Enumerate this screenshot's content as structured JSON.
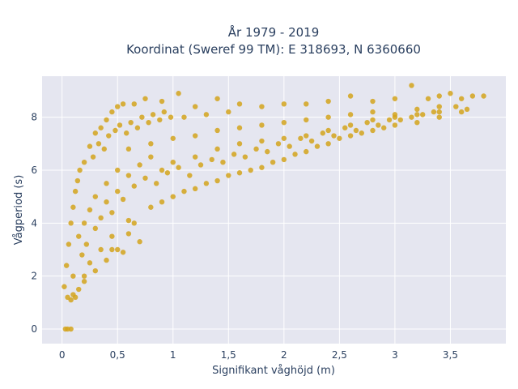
{
  "chart_data": {
    "type": "scatter",
    "title_line1": "År 1979 - 2019",
    "title_line2": "Koordinat (Sweref 99 TM): E 318693, N 6360660",
    "xlabel": "Signifikant våghöjd (m)",
    "ylabel": "Vågperiod (s)",
    "xlim": [
      -0.18,
      4.0
    ],
    "ylim": [
      -0.55,
      9.55
    ],
    "xticks": [
      0,
      0.5,
      1,
      1.5,
      2,
      2.5,
      3,
      3.5
    ],
    "xtick_labels": [
      "0",
      "0,5",
      "1",
      "1,5",
      "2",
      "2,5",
      "3",
      "3,5"
    ],
    "yticks": [
      0,
      2,
      4,
      6,
      8
    ],
    "ytick_labels": [
      "0",
      "2",
      "4",
      "6",
      "8"
    ],
    "grid": true,
    "marker_color": "#d4a31c",
    "background_color": "#e5e6f0",
    "points": [
      [
        0.03,
        0.0
      ],
      [
        0.05,
        0.0
      ],
      [
        0.08,
        0.0
      ],
      [
        0.02,
        1.6
      ],
      [
        0.05,
        1.2
      ],
      [
        0.08,
        1.1
      ],
      [
        0.1,
        1.3
      ],
      [
        0.04,
        2.4
      ],
      [
        0.06,
        3.2
      ],
      [
        0.08,
        4.0
      ],
      [
        0.1,
        4.6
      ],
      [
        0.12,
        5.2
      ],
      [
        0.14,
        5.6
      ],
      [
        0.16,
        6.0
      ],
      [
        0.2,
        6.3
      ],
      [
        0.25,
        6.9
      ],
      [
        0.3,
        7.4
      ],
      [
        0.35,
        7.6
      ],
      [
        0.4,
        7.9
      ],
      [
        0.45,
        8.2
      ],
      [
        0.5,
        8.4
      ],
      [
        0.55,
        8.5
      ],
      [
        0.65,
        8.5
      ],
      [
        0.75,
        8.7
      ],
      [
        0.9,
        8.6
      ],
      [
        1.05,
        8.9
      ],
      [
        1.2,
        8.4
      ],
      [
        1.4,
        8.7
      ],
      [
        1.6,
        8.5
      ],
      [
        1.8,
        8.4
      ],
      [
        2.0,
        8.5
      ],
      [
        2.2,
        8.5
      ],
      [
        2.4,
        8.6
      ],
      [
        2.6,
        8.8
      ],
      [
        2.8,
        8.6
      ],
      [
        3.0,
        8.7
      ],
      [
        3.15,
        9.2
      ],
      [
        3.3,
        8.7
      ],
      [
        3.4,
        8.8
      ],
      [
        3.5,
        8.9
      ],
      [
        3.6,
        8.7
      ],
      [
        3.7,
        8.8
      ],
      [
        3.8,
        8.8
      ],
      [
        3.6,
        8.2
      ],
      [
        3.4,
        8.0
      ],
      [
        3.2,
        7.8
      ],
      [
        3.0,
        7.7
      ],
      [
        2.8,
        7.5
      ],
      [
        2.6,
        7.3
      ],
      [
        2.4,
        7.0
      ],
      [
        2.2,
        6.7
      ],
      [
        2.0,
        6.4
      ],
      [
        1.8,
        6.1
      ],
      [
        1.6,
        5.9
      ],
      [
        1.4,
        5.6
      ],
      [
        1.2,
        5.3
      ],
      [
        1.0,
        5.0
      ],
      [
        0.8,
        4.6
      ],
      [
        0.6,
        4.1
      ],
      [
        0.45,
        3.5
      ],
      [
        0.35,
        3.0
      ],
      [
        0.25,
        2.5
      ],
      [
        0.2,
        2.0
      ],
      [
        0.15,
        1.5
      ],
      [
        0.12,
        1.2
      ],
      [
        0.5,
        3.0
      ],
      [
        0.55,
        2.9
      ],
      [
        0.7,
        3.3
      ],
      [
        0.3,
        2.2
      ],
      [
        0.2,
        1.8
      ],
      [
        0.6,
        6.8
      ],
      [
        0.8,
        7.0
      ],
      [
        1.0,
        7.2
      ],
      [
        1.2,
        7.3
      ],
      [
        1.4,
        7.5
      ],
      [
        1.6,
        7.6
      ],
      [
        1.8,
        7.7
      ],
      [
        2.0,
        7.8
      ],
      [
        2.2,
        7.9
      ],
      [
        2.4,
        8.0
      ],
      [
        2.6,
        8.1
      ],
      [
        2.8,
        8.2
      ],
      [
        3.0,
        8.0
      ],
      [
        3.2,
        8.3
      ],
      [
        3.4,
        8.4
      ],
      [
        3.55,
        8.4
      ],
      [
        3.65,
        8.3
      ],
      [
        1.1,
        8.0
      ],
      [
        1.3,
        8.1
      ],
      [
        1.5,
        8.2
      ],
      [
        0.3,
        5.0
      ],
      [
        0.4,
        5.5
      ],
      [
        0.5,
        6.0
      ],
      [
        0.6,
        5.8
      ],
      [
        0.7,
        6.2
      ],
      [
        0.8,
        6.5
      ],
      [
        0.9,
        6.0
      ],
      [
        1.0,
        6.3
      ],
      [
        1.2,
        6.5
      ],
      [
        1.4,
        6.8
      ],
      [
        1.6,
        7.0
      ],
      [
        1.8,
        7.1
      ],
      [
        2.0,
        7.2
      ],
      [
        2.2,
        7.3
      ],
      [
        2.4,
        7.5
      ],
      [
        2.6,
        7.7
      ],
      [
        2.8,
        7.9
      ],
      [
        3.0,
        8.1
      ],
      [
        3.2,
        8.1
      ],
      [
        3.4,
        8.2
      ],
      [
        0.2,
        4.0
      ],
      [
        0.25,
        4.5
      ],
      [
        0.3,
        3.8
      ],
      [
        0.35,
        4.2
      ],
      [
        0.4,
        4.8
      ],
      [
        0.45,
        4.4
      ],
      [
        0.5,
        5.2
      ],
      [
        0.55,
        4.9
      ],
      [
        0.65,
        5.4
      ],
      [
        0.75,
        5.7
      ],
      [
        0.85,
        5.5
      ],
      [
        0.95,
        5.9
      ],
      [
        1.05,
        6.1
      ],
      [
        1.15,
        5.8
      ],
      [
        1.25,
        6.2
      ],
      [
        1.35,
        6.4
      ],
      [
        1.45,
        6.3
      ],
      [
        1.55,
        6.6
      ],
      [
        1.65,
        6.5
      ],
      [
        1.75,
        6.8
      ],
      [
        1.85,
        6.7
      ],
      [
        1.95,
        7.0
      ],
      [
        2.05,
        6.9
      ],
      [
        2.15,
        7.2
      ],
      [
        2.25,
        7.1
      ],
      [
        2.35,
        7.4
      ],
      [
        2.45,
        7.3
      ],
      [
        2.55,
        7.6
      ],
      [
        2.65,
        7.5
      ],
      [
        2.75,
        7.8
      ],
      [
        2.85,
        7.7
      ],
      [
        2.95,
        7.9
      ],
      [
        3.05,
        7.9
      ],
      [
        3.15,
        8.0
      ],
      [
        3.25,
        8.1
      ],
      [
        3.35,
        8.2
      ],
      [
        0.15,
        3.5
      ],
      [
        0.18,
        2.8
      ],
      [
        0.1,
        2.0
      ],
      [
        0.22,
        3.2
      ],
      [
        0.28,
        6.5
      ],
      [
        0.33,
        7.0
      ],
      [
        0.38,
        6.8
      ],
      [
        0.42,
        7.3
      ],
      [
        0.48,
        7.5
      ],
      [
        0.52,
        7.7
      ],
      [
        0.58,
        7.4
      ],
      [
        0.62,
        7.8
      ],
      [
        0.68,
        7.6
      ],
      [
        0.72,
        8.0
      ],
      [
        0.78,
        7.8
      ],
      [
        0.82,
        8.1
      ],
      [
        0.88,
        7.9
      ],
      [
        0.92,
        8.2
      ],
      [
        0.98,
        8.0
      ],
      [
        0.4,
        2.6
      ],
      [
        0.45,
        3.0
      ],
      [
        0.6,
        3.6
      ],
      [
        0.65,
        4.0
      ],
      [
        0.9,
        4.8
      ],
      [
        1.1,
        5.2
      ],
      [
        1.3,
        5.5
      ],
      [
        1.5,
        5.8
      ],
      [
        1.7,
        6.0
      ],
      [
        1.9,
        6.3
      ],
      [
        2.1,
        6.6
      ],
      [
        2.3,
        6.9
      ],
      [
        2.5,
        7.2
      ],
      [
        2.7,
        7.4
      ],
      [
        2.9,
        7.6
      ]
    ]
  }
}
